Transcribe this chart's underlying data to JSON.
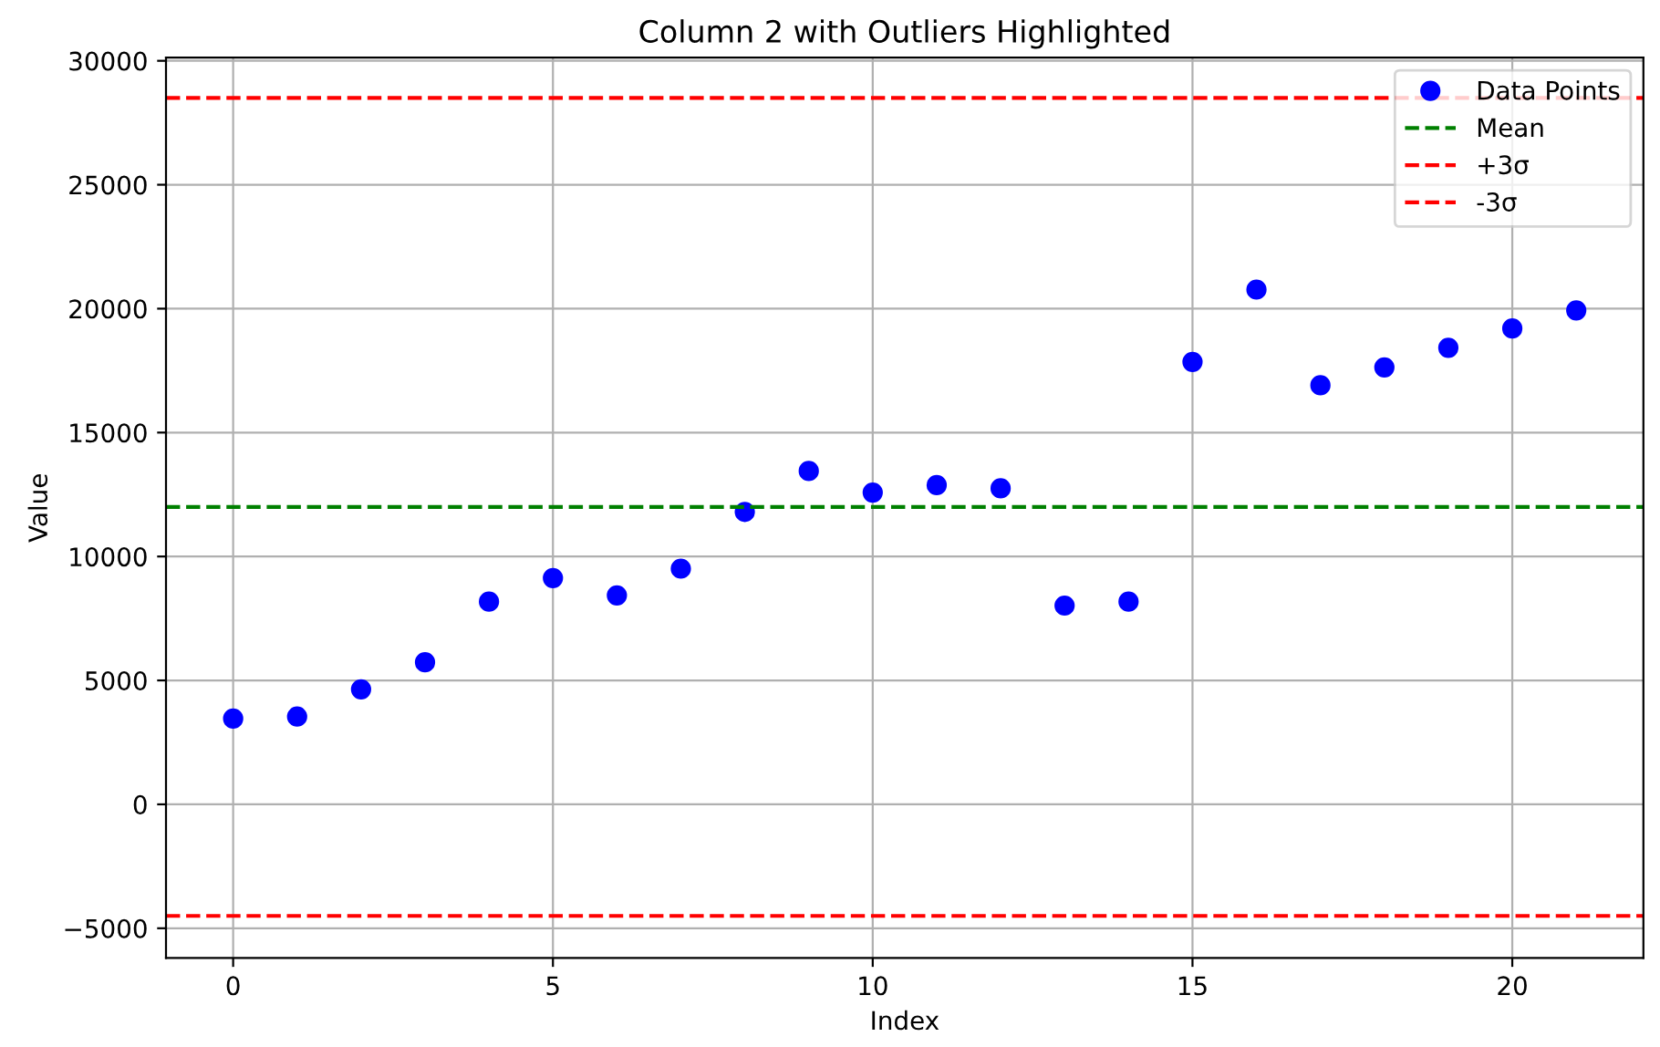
{
  "chart_data": {
    "type": "scatter",
    "title": "Column 2 with Outliers Highlighted",
    "xlabel": "Index",
    "ylabel": "Value",
    "x": [
      0,
      1,
      2,
      3,
      4,
      5,
      6,
      7,
      8,
      9,
      10,
      11,
      12,
      13,
      14,
      15,
      16,
      17,
      18,
      19,
      20,
      21
    ],
    "series": [
      {
        "name": "Data Points",
        "color": "#0000ff",
        "values": [
          3460,
          3540,
          4640,
          5730,
          8180,
          9130,
          8430,
          9510,
          11800,
          13450,
          12580,
          12880,
          12750,
          8020,
          8180,
          17850,
          20770,
          16910,
          17630,
          18420,
          19200,
          19930
        ]
      }
    ],
    "ref_lines": [
      {
        "axis": "y",
        "value": 12000,
        "label": "Mean",
        "color": "#008000",
        "line_style": "dashed"
      },
      {
        "axis": "y",
        "value": 28500,
        "label": "+3σ",
        "color": "#ff0000",
        "line_style": "dashed"
      },
      {
        "axis": "y",
        "value": -4500,
        "label": "-3σ",
        "color": "#ff0000",
        "line_style": "dashed"
      }
    ],
    "xlim": [
      -1.05,
      22.05
    ],
    "xticks": [
      0,
      5,
      10,
      15,
      20
    ],
    "ylim": [
      -6200,
      30130
    ],
    "yticks": [
      {
        "value": -5000,
        "label": "−5000"
      },
      0,
      5000,
      10000,
      15000,
      20000,
      25000,
      30000
    ],
    "grid": true,
    "legend": "top right",
    "marker": "circle"
  }
}
